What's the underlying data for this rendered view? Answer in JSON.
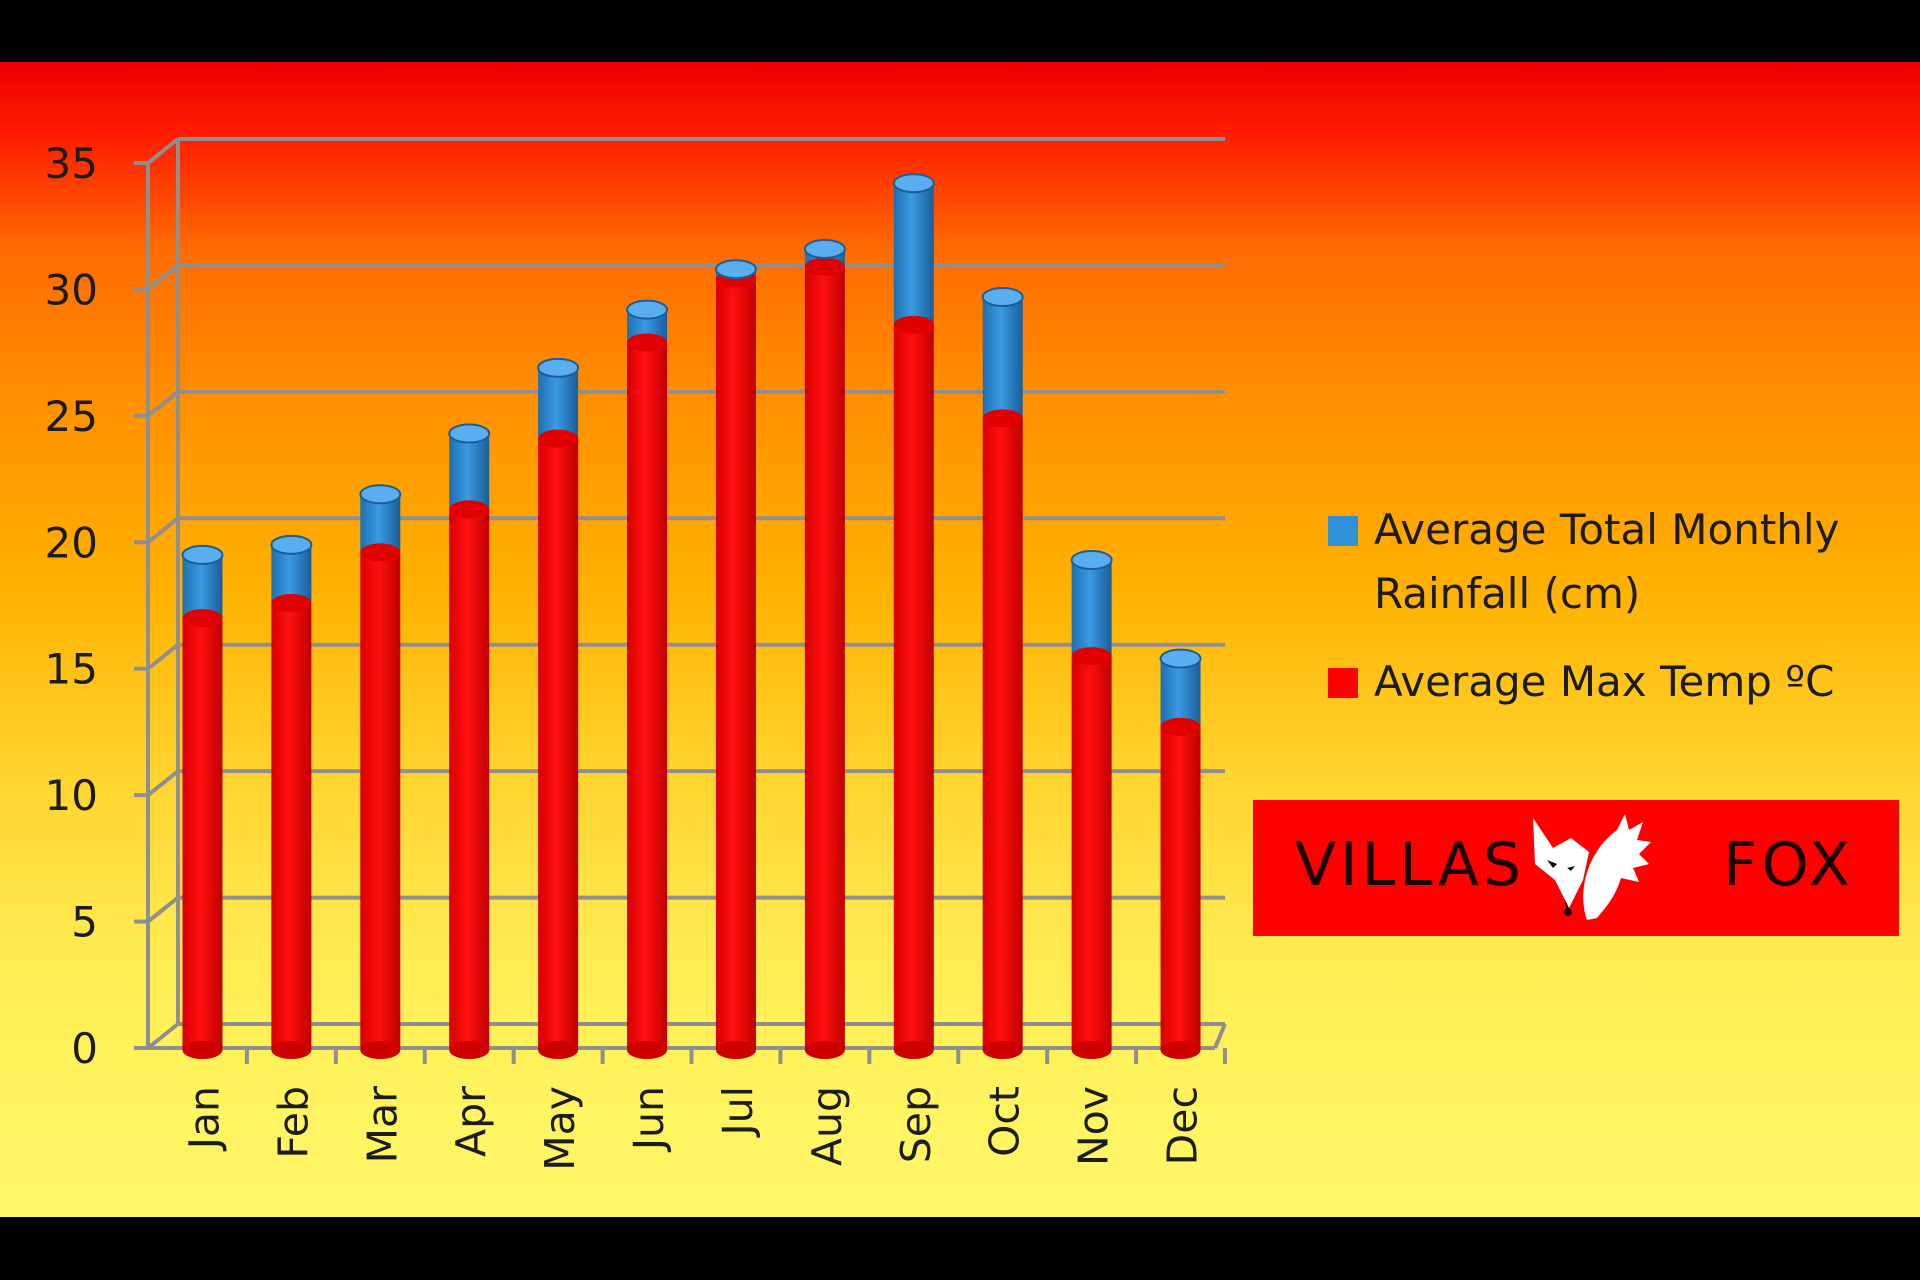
{
  "chart_data": {
    "type": "bar",
    "stacked": true,
    "categories": [
      "Jan",
      "Feb",
      "Mar",
      "Apr",
      "May",
      "Jun",
      "Jul",
      "Aug",
      "Sep",
      "Oct",
      "Nov",
      "Dec"
    ],
    "series": [
      {
        "name": "Average Max Temp ºC",
        "color": "#ff0000",
        "values": [
          17,
          17.6,
          19.6,
          21.3,
          24.1,
          27.9,
          30.4,
          30.9,
          28.6,
          24.9,
          15.5,
          12.7
        ]
      },
      {
        "name": "Average Total Monthly Rainfall (cm)",
        "color": "#2f8fd8",
        "values": [
          2.5,
          2.3,
          2.3,
          3.0,
          2.8,
          1.3,
          0.4,
          0.7,
          5.6,
          4.8,
          3.8,
          2.7
        ]
      }
    ],
    "yticks": [
      0,
      5,
      10,
      15,
      20,
      25,
      30,
      35
    ],
    "ylim": [
      0,
      35
    ],
    "grid": true,
    "legend_position": "right",
    "legend_order": [
      "Average Total Monthly Rainfall (cm)",
      "Average Max Temp ºC"
    ]
  },
  "legend": {
    "rain_label": "Average Total Monthly Rainfall (cm)",
    "temp_label": "Average Max Temp ºC",
    "rain_color": "#2f8fd8",
    "temp_color": "#ff0000"
  },
  "logo": {
    "left_word": "VILLAS",
    "right_word": "FOX",
    "icon": "fox-logo-icon"
  }
}
